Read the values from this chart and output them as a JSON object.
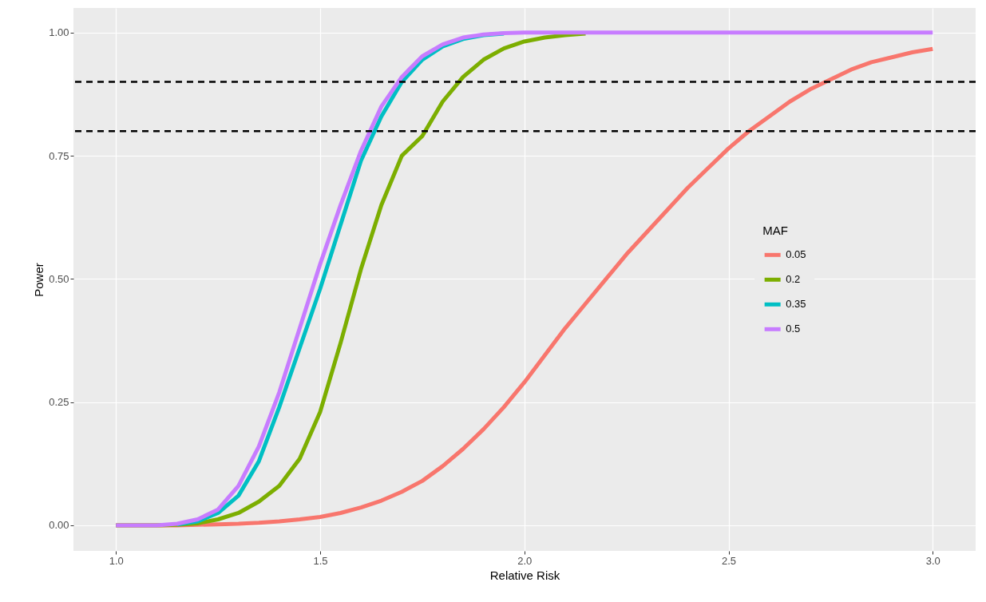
{
  "chart_data": {
    "type": "line",
    "xlabel": "Relative Risk",
    "ylabel": "Power",
    "legend_title": "MAF",
    "legend": "right",
    "grid": true,
    "line_style": "solid",
    "marker": "none",
    "xlim": [
      0.896,
      3.105
    ],
    "ylim": [
      -0.052,
      1.05
    ],
    "xticks": [
      {
        "value": 1,
        "label": "1.0"
      },
      {
        "value": 1.5,
        "label": "1.5"
      },
      {
        "value": 2,
        "label": "2.0"
      },
      {
        "value": 2.5,
        "label": "2.5"
      },
      {
        "value": 3,
        "label": "3.0"
      }
    ],
    "yticks": [
      {
        "value": 0,
        "label": "0.00"
      },
      {
        "value": 0.25,
        "label": "0.25"
      },
      {
        "value": 0.5,
        "label": "0.50"
      },
      {
        "value": 0.75,
        "label": "0.75"
      },
      {
        "value": 1,
        "label": "1.00"
      }
    ],
    "x": [
      1.0,
      1.05,
      1.1,
      1.15,
      1.2,
      1.25,
      1.3,
      1.35,
      1.4,
      1.45,
      1.5,
      1.55,
      1.6,
      1.65,
      1.7,
      1.75,
      1.8,
      1.85,
      1.9,
      1.95,
      2.0,
      2.05,
      2.1,
      2.15,
      2.2,
      2.25,
      2.3,
      2.35,
      2.4,
      2.45,
      2.5,
      2.55,
      2.6,
      2.65,
      2.7,
      2.75,
      2.8,
      2.85,
      2.9,
      2.95,
      3.0
    ],
    "series": [
      {
        "name": "0.05",
        "color": "#f8766d",
        "values": [
          0,
          0,
          0,
          0,
          0.001,
          0.002,
          0.003,
          0.005,
          0.008,
          0.012,
          0.017,
          0.025,
          0.036,
          0.05,
          0.068,
          0.09,
          0.12,
          0.155,
          0.195,
          0.24,
          0.29,
          0.345,
          0.4,
          0.45,
          0.5,
          0.55,
          0.595,
          0.64,
          0.685,
          0.725,
          0.765,
          0.8,
          0.83,
          0.86,
          0.885,
          0.905,
          0.925,
          0.94,
          0.95,
          0.96,
          0.967
        ]
      },
      {
        "name": "0.2",
        "color": "#7cae00",
        "values": [
          0,
          0,
          0,
          0.001,
          0.004,
          0.012,
          0.025,
          0.048,
          0.08,
          0.135,
          0.23,
          0.37,
          0.52,
          0.65,
          0.75,
          0.79,
          0.86,
          0.91,
          0.945,
          0.968,
          0.982,
          0.99,
          0.995,
          0.998,
          null,
          null,
          null,
          null,
          null,
          null,
          null,
          null,
          null,
          null,
          null,
          null,
          null,
          null,
          null,
          null,
          null
        ]
      },
      {
        "name": "0.35",
        "color": "#00bfc4",
        "values": [
          null,
          null,
          null,
          0.002,
          0.008,
          0.025,
          0.06,
          0.13,
          0.24,
          0.36,
          0.48,
          0.61,
          0.74,
          0.83,
          0.9,
          0.945,
          0.972,
          0.987,
          0.995,
          0.998,
          null,
          null,
          null,
          null,
          null,
          null,
          null,
          null,
          null,
          null,
          null,
          null,
          null,
          null,
          null,
          null,
          null,
          null,
          null,
          null,
          null
        ]
      },
      {
        "name": "0.5",
        "color": "#c77cff",
        "values": [
          0,
          0,
          0,
          0.003,
          0.012,
          0.032,
          0.08,
          0.16,
          0.27,
          0.4,
          0.53,
          0.65,
          0.76,
          0.85,
          0.91,
          0.952,
          0.976,
          0.99,
          0.996,
          0.999,
          1,
          1,
          1,
          1,
          1,
          1,
          1,
          1,
          1,
          1,
          1,
          1,
          1,
          1,
          1,
          1,
          1,
          1,
          1,
          1,
          1
        ]
      }
    ],
    "ref_lines": [
      {
        "axis": "y",
        "value": 0.9,
        "color": "#000000",
        "line_style": "dashed"
      },
      {
        "axis": "y",
        "value": 0.8,
        "color": "#000000",
        "line_style": "dashed"
      }
    ]
  }
}
